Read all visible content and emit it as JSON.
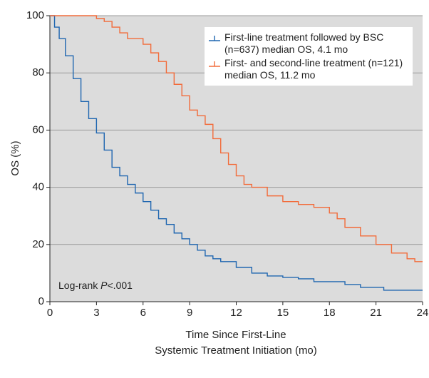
{
  "chart_data": {
    "type": "step",
    "ylabel": "OS (%)",
    "xlabel": [
      "Time Since First-Line",
      "Systemic Treatment Initiation (mo)"
    ],
    "annotation": [
      "Log-rank",
      "P",
      "<.001"
    ],
    "xlim": [
      0,
      24
    ],
    "xticks": [
      0,
      3,
      6,
      9,
      12,
      15,
      18,
      21,
      24
    ],
    "ylim": [
      0,
      100
    ],
    "yticks": [
      0,
      20,
      40,
      60,
      80,
      100
    ],
    "grid": true,
    "series": [
      {
        "name": "First-line treatment followed by BSC (n=637) median OS, 4.1 mo",
        "color": "#1f66b0",
        "x": [
          0,
          0.3,
          0.6,
          1,
          1.5,
          2,
          2.5,
          3,
          3.5,
          4,
          4.5,
          5,
          5.5,
          6,
          6.5,
          7,
          7.5,
          8,
          8.5,
          9,
          9.5,
          10,
          10.5,
          11,
          12,
          13,
          14,
          15,
          16,
          17,
          18,
          19,
          20,
          21,
          21.5,
          24
        ],
        "values": [
          100,
          96,
          92,
          86,
          78,
          70,
          64,
          59,
          53,
          47,
          44,
          41,
          38,
          35,
          32,
          29,
          27,
          24,
          22,
          20,
          18,
          16,
          15,
          14,
          12,
          10,
          9,
          8.5,
          8,
          7,
          7,
          6,
          5,
          5,
          4,
          4
        ]
      },
      {
        "name": "First- and second-line treatment (n=121) median OS, 11.2 mo",
        "color": "#f26b3a",
        "x": [
          0,
          2.5,
          3,
          3.5,
          4,
          4.5,
          5,
          6,
          6.5,
          7,
          7.5,
          8,
          8.5,
          9,
          9.5,
          10,
          10.5,
          11,
          11.5,
          12,
          12.5,
          13,
          14,
          15,
          16,
          17,
          18,
          18.5,
          19,
          20,
          21,
          22,
          23,
          23.5,
          24
        ],
        "values": [
          100,
          100,
          99,
          98,
          96,
          94,
          92,
          90,
          87,
          84,
          80,
          76,
          72,
          67,
          65,
          62,
          57,
          52,
          48,
          44,
          41,
          40,
          37,
          35,
          34,
          33,
          31,
          29,
          26,
          23,
          20,
          17,
          15,
          14,
          14
        ]
      }
    ]
  }
}
